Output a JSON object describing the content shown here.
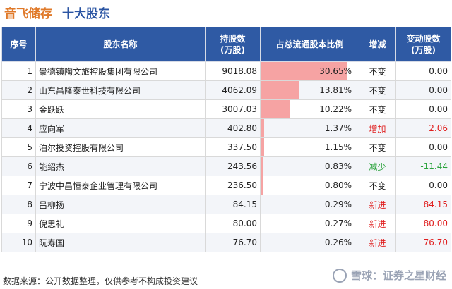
{
  "title": {
    "company": "音飞储存",
    "subtitle": "十大股东"
  },
  "table": {
    "headers": {
      "rank": "序号",
      "name": "股东名称",
      "shares": "持股数\n(万股)",
      "ratio": "占总流通股本比例",
      "change_type": "增减",
      "change": "变动股数\n(万股)"
    },
    "rows": [
      {
        "rank": "1",
        "name": "景德镇陶文旅控股集团有限公司",
        "shares": "9018.08",
        "ratio": "30.65%",
        "ratio_value": 30.65,
        "change_type": "不变",
        "change": "0.00",
        "status": "none"
      },
      {
        "rank": "2",
        "name": "山东昌隆泰世科技有限公司",
        "shares": "4062.09",
        "ratio": "13.81%",
        "ratio_value": 13.81,
        "change_type": "不变",
        "change": "0.00",
        "status": "none"
      },
      {
        "rank": "3",
        "name": "金跃跃",
        "shares": "3007.03",
        "ratio": "10.22%",
        "ratio_value": 10.22,
        "change_type": "不变",
        "change": "0.00",
        "status": "none"
      },
      {
        "rank": "4",
        "name": "应向军",
        "shares": "402.80",
        "ratio": "1.37%",
        "ratio_value": 1.37,
        "change_type": "增加",
        "change": "2.06",
        "status": "up"
      },
      {
        "rank": "5",
        "name": "泊尔投资控股有限公司",
        "shares": "337.50",
        "ratio": "1.15%",
        "ratio_value": 1.15,
        "change_type": "不变",
        "change": "0.00",
        "status": "none"
      },
      {
        "rank": "6",
        "name": "能绍杰",
        "shares": "243.56",
        "ratio": "0.83%",
        "ratio_value": 0.83,
        "change_type": "减少",
        "change": "-11.44",
        "status": "down"
      },
      {
        "rank": "7",
        "name": "宁波中昌恒泰企业管理有限公司",
        "shares": "236.50",
        "ratio": "0.80%",
        "ratio_value": 0.8,
        "change_type": "不变",
        "change": "0.00",
        "status": "none"
      },
      {
        "rank": "8",
        "name": "吕柳扬",
        "shares": "84.15",
        "ratio": "0.29%",
        "ratio_value": 0.29,
        "change_type": "新进",
        "change": "84.15",
        "status": "up"
      },
      {
        "rank": "9",
        "name": "倪思礼",
        "shares": "80.00",
        "ratio": "0.27%",
        "ratio_value": 0.27,
        "change_type": "新进",
        "change": "80.00",
        "status": "up"
      },
      {
        "rank": "10",
        "name": "阮寿国",
        "shares": "76.70",
        "ratio": "0.26%",
        "ratio_value": 0.26,
        "change_type": "新进",
        "change": "76.70",
        "status": "up"
      }
    ]
  },
  "colors": {
    "header_bg": "#2f5aa4",
    "bar": "#f6a3a3",
    "up": "#e02020",
    "down": "#2aa23c",
    "title_company": "#e07a2a",
    "title_sub": "#2b55a3"
  },
  "footer": "数据来源：公开数据整理，仅供参考不构成投资建议",
  "brand": "雪球：证券之星财经",
  "brand_icon": "snowball-icon"
}
